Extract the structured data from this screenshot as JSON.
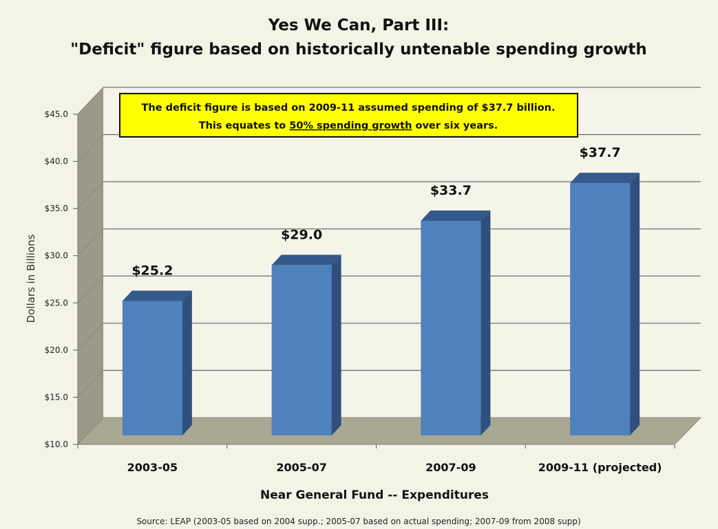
{
  "chart_data": {
    "type": "bar",
    "title_line1": "Yes We Can, Part III:",
    "title_line2": "\"Deficit\" figure based on historically untenable spending growth",
    "categories": [
      "2003-05",
      "2005-07",
      "2007-09",
      "2009-11 (projected)"
    ],
    "values": [
      25.2,
      29.0,
      33.7,
      37.7
    ],
    "value_labels": [
      "$25.2",
      "$29.0",
      "$33.7",
      "$37.7"
    ],
    "ylabel": "Dollars in Billions",
    "xlabel": "Near General Fund -- Expenditures",
    "ylim": [
      10,
      45
    ],
    "yticks": [
      "$10.0",
      "$15.0",
      "$20.0",
      "$25.0",
      "$30.0",
      "$35.0",
      "$40.0",
      "$45.0"
    ],
    "grid": true,
    "bar_color": "#4f81bd",
    "callout": {
      "line1": "The deficit figure is based on 2009-11 assumed spending of $37.7 billion.",
      "line2_before": "This equates to ",
      "line2_underlined": "50% spending growth",
      "line2_after": " over six years.",
      "background": "#ffff00"
    },
    "source": "Source: LEAP (2003-05 based on 2004 supp.; 2005-07 based on actual spending; 2007-09 from 2008 supp)"
  }
}
